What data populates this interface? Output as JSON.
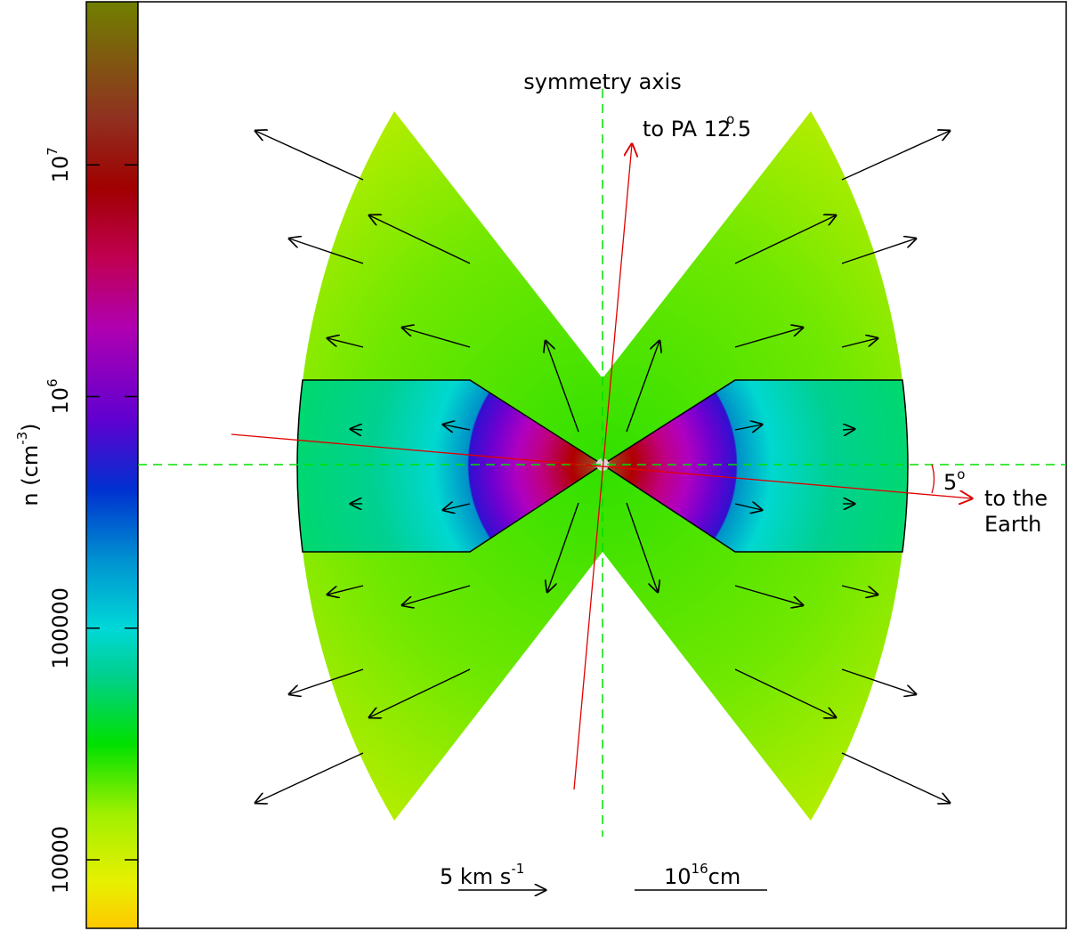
{
  "colorbar": {
    "label": "n (cm",
    "label_sup": "-3",
    "label_end": ")",
    "scale": "log",
    "lim": [
      5060,
      50600000
    ],
    "ticks": [
      10000,
      100000,
      {
        "value": 1000000,
        "label": "10",
        "sup": "6"
      },
      {
        "value": 10000000,
        "label": "10",
        "sup": "7"
      }
    ]
  },
  "annotations": {
    "symmetry_axis": "symmetry axis",
    "pa": {
      "text": "to PA 12.5",
      "sup": "o"
    },
    "angle": {
      "text": "5",
      "sup": "o"
    },
    "earth": [
      "to the",
      "Earth"
    ],
    "velocity_scale": {
      "text": "5 km s",
      "sup": "-1"
    },
    "length_scale": {
      "text": "10",
      "sup": "16",
      "unit": "cm"
    }
  }
}
